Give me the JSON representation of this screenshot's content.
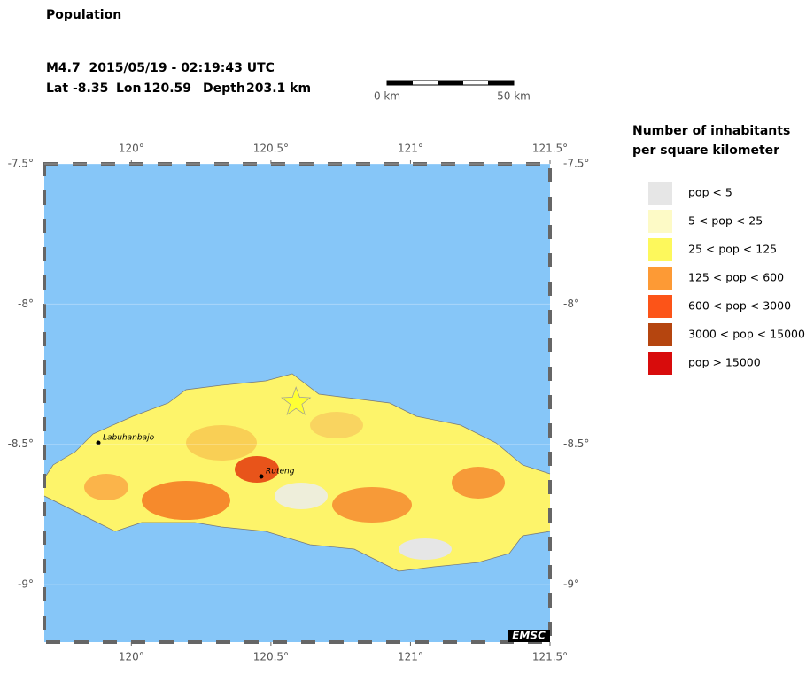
{
  "map": {
    "title": "Population",
    "event": {
      "headline": "M4.7  2015/05/19 - 02:19:43 UTC",
      "lat_label": "Lat",
      "lat": -8.35,
      "lon_label": "Lon",
      "lon": 120.59,
      "depth_label": "Depth",
      "depth": "203.1 km"
    },
    "scale_bar": {
      "start": "0 km",
      "end": "50 km"
    },
    "xlim": [
      119.688,
      121.5
    ],
    "ylim": [
      -9.205,
      -7.5
    ],
    "xticks": [
      {
        "value": 120,
        "label": "120°"
      },
      {
        "value": 120.5,
        "label": "120.5°"
      },
      {
        "value": 121,
        "label": "121°"
      },
      {
        "value": 121.5,
        "label": "121.5°"
      }
    ],
    "yticks": [
      {
        "value": -7.5,
        "label": "-7.5°"
      },
      {
        "value": -8,
        "label": "-8°"
      },
      {
        "value": -8.5,
        "label": "-8.5°"
      },
      {
        "value": -9,
        "label": "-9°"
      }
    ],
    "cities": [
      "Labuhanbajo",
      "Ruteng"
    ],
    "credit": "EMSC",
    "legend": {
      "title": [
        "Number of inhabitants",
        "per square kilometer"
      ],
      "items": [
        {
          "label": "pop < 5",
          "color": "#e6e6e6"
        },
        {
          "label": "5 < pop < 25",
          "color": "#fdfac6"
        },
        {
          "label": "25 < pop < 125",
          "color": "#fdf85c"
        },
        {
          "label": "125 < pop < 600",
          "color": "#fd9a35"
        },
        {
          "label": "600 < pop < 3000",
          "color": "#fc5418"
        },
        {
          "label": "3000 < pop < 15000",
          "color": "#b5450f"
        },
        {
          "label": "pop > 15000",
          "color": "#d80c0c"
        }
      ]
    }
  }
}
